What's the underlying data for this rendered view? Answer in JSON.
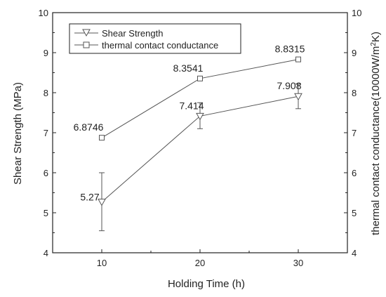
{
  "chart_data": {
    "type": "line",
    "x": [
      10,
      20,
      30
    ],
    "xlim": [
      5,
      35
    ],
    "x_ticks": [
      10,
      20,
      30
    ],
    "xlabel": "Holding Time (h)",
    "ylabel_left": "Shear Strength (MPa)",
    "ylabel_right_parts": [
      "thermal contact conductance(10000W/m",
      "2",
      "K)"
    ],
    "ylim": [
      4,
      10
    ],
    "y_ticks": [
      4,
      5,
      6,
      7,
      8,
      9,
      10
    ],
    "ylim_right": [
      4,
      10
    ],
    "grid": false,
    "legend_position": "top-left",
    "series": [
      {
        "name": "Shear Strength",
        "marker": "triangle-down",
        "axis": "left",
        "values": [
          5.27,
          7.414,
          7.908
        ],
        "labels": [
          "5.27",
          "7.414",
          "7.908"
        ],
        "error_low": [
          4.55,
          7.1,
          7.6
        ],
        "error_high": [
          6.0,
          7.75,
          8.22
        ]
      },
      {
        "name": "thermal contact conductance",
        "marker": "square",
        "axis": "right",
        "values": [
          6.8746,
          8.3541,
          8.8315
        ],
        "labels": [
          "6.8746",
          "8.3541",
          "8.8315"
        ]
      }
    ],
    "colors": {
      "axis": "#222222",
      "line": "#555555"
    }
  }
}
